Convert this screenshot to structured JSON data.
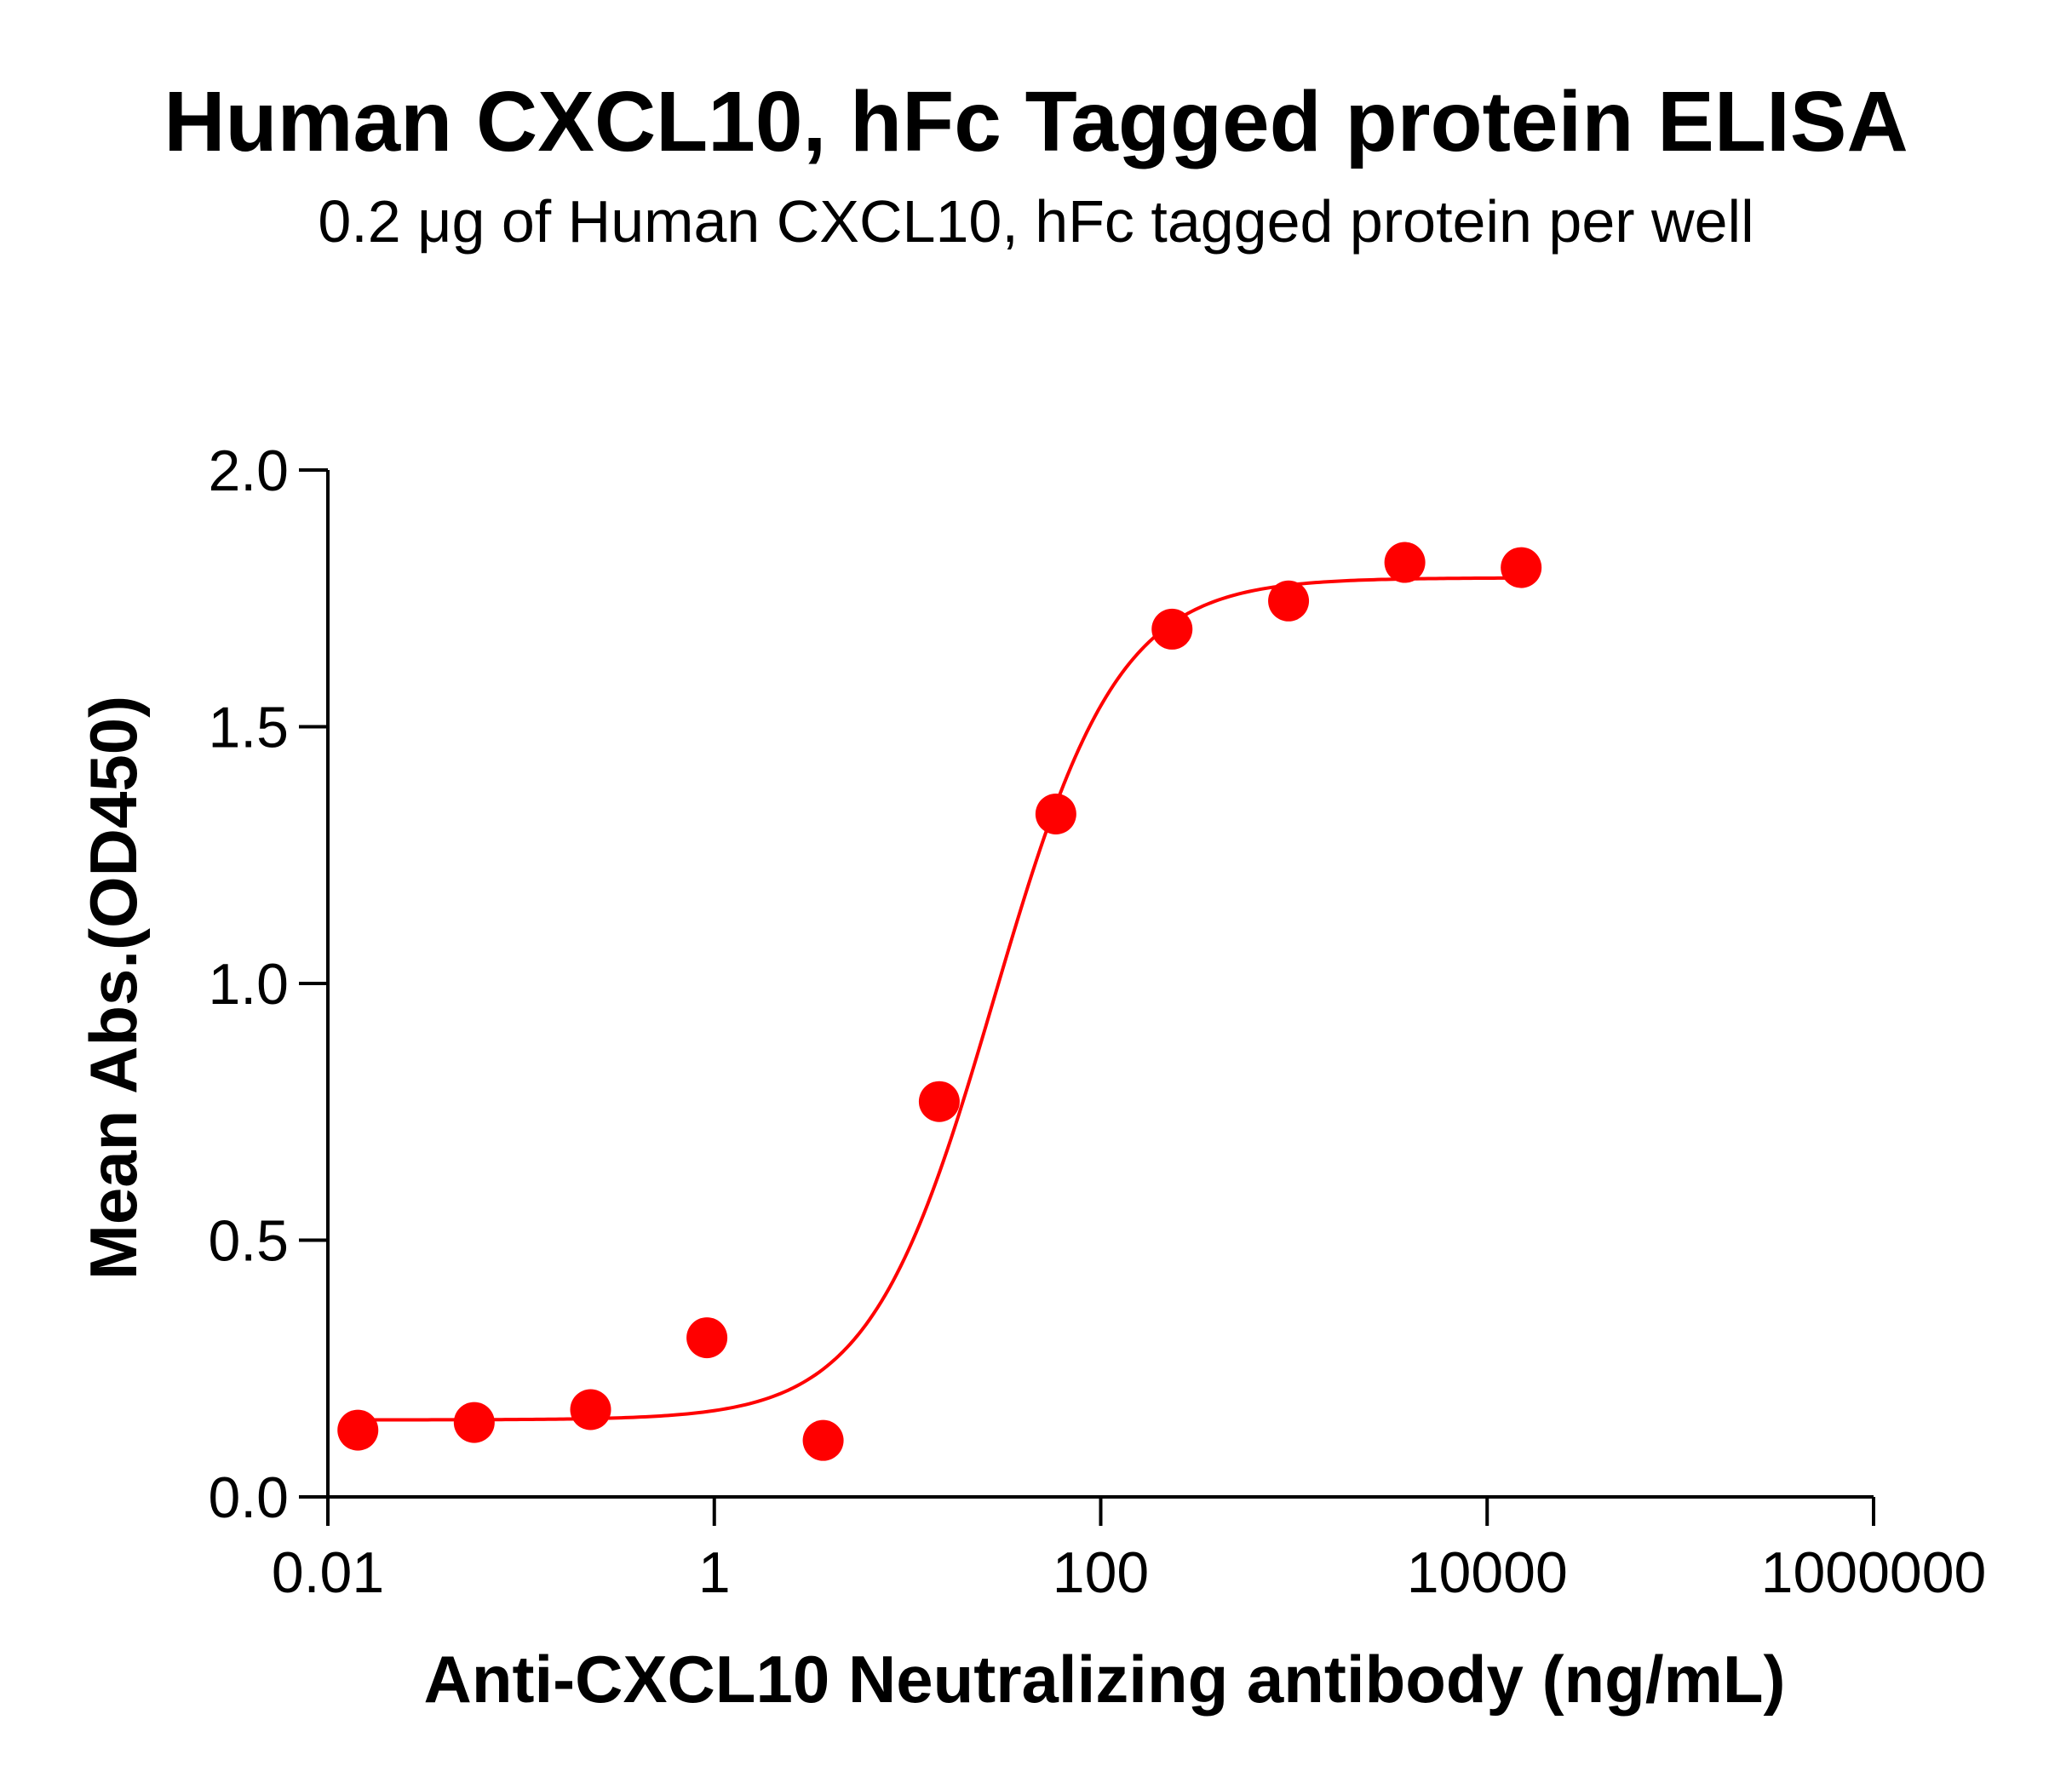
{
  "chart_data": {
    "type": "scatter",
    "title": "Human CXCL10, hFc Tagged protein ELISA",
    "subtitle": "0.2 μg of Human CXCL10, hFc tagged protein per well",
    "xlabel": "Anti-CXCL10 Neutralizing antibody (ng/mL)",
    "ylabel": "Mean Abs.(OD450)",
    "x_scale": "log10",
    "xlim": [
      0.01,
      1000000
    ],
    "ylim": [
      0,
      2.0
    ],
    "x_ticks": [
      0.01,
      1,
      100,
      10000,
      1000000
    ],
    "x_tick_labels": [
      "0.01",
      "1",
      "100",
      "10000",
      "1000000"
    ],
    "y_ticks": [
      0,
      0.5,
      1.0,
      1.5,
      2.0
    ],
    "y_tick_labels": [
      "0.0",
      "0.5",
      "1.0",
      "1.5",
      "2.0"
    ],
    "grid": false,
    "legend": "none",
    "color": "#ff0000",
    "series": [
      {
        "points": [
          {
            "x": 0.0143,
            "y": 0.13
          },
          {
            "x": 0.0572,
            "y": 0.145
          },
          {
            "x": 0.229,
            "y": 0.17
          },
          {
            "x": 0.916,
            "y": 0.31
          },
          {
            "x": 3.66,
            "y": 0.11
          },
          {
            "x": 14.6,
            "y": 0.77
          },
          {
            "x": 58.6,
            "y": 1.33
          },
          {
            "x": 234,
            "y": 1.69
          },
          {
            "x": 938,
            "y": 1.745
          },
          {
            "x": 3750,
            "y": 1.82
          },
          {
            "x": 15000,
            "y": 1.81
          }
        ],
        "fit": {
          "model": "4PL",
          "bottom": 0.15,
          "top": 1.79,
          "ec50": 28,
          "hill": 1.35,
          "x_range": [
            0.0143,
            15000
          ]
        }
      }
    ]
  }
}
